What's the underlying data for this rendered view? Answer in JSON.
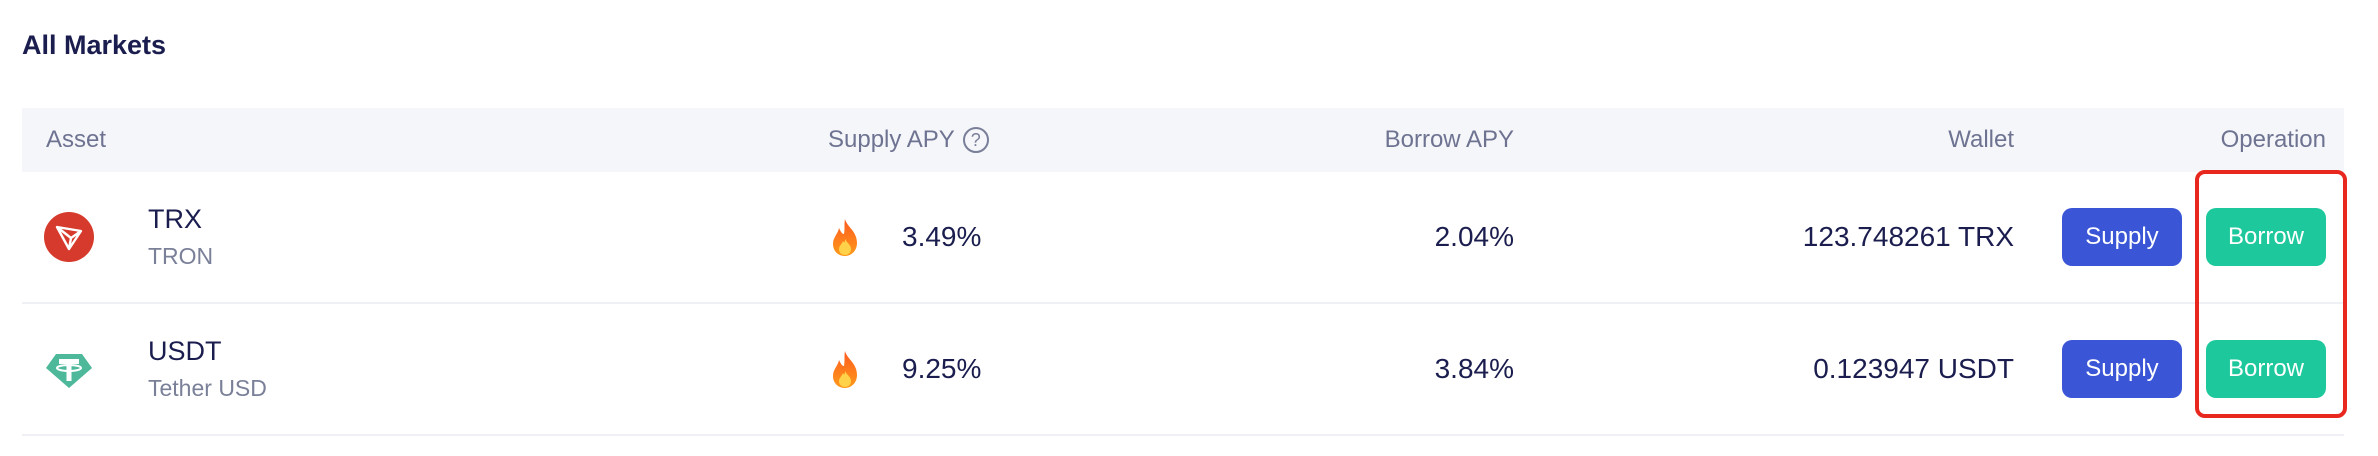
{
  "page": {
    "title": "All Markets"
  },
  "table": {
    "headers": {
      "asset": "Asset",
      "supply_apy": "Supply APY",
      "supply_apy_help": "?",
      "borrow_apy": "Borrow APY",
      "wallet": "Wallet",
      "operation": "Operation"
    },
    "rows": [
      {
        "symbol": "TRX",
        "name": "TRON",
        "icon": "tron-icon",
        "supply_apy": "3.49%",
        "borrow_apy": "2.04%",
        "wallet": "123.748261 TRX",
        "supply_label": "Supply",
        "borrow_label": "Borrow"
      },
      {
        "symbol": "USDT",
        "name": "Tether USD",
        "icon": "tether-icon",
        "supply_apy": "9.25%",
        "borrow_apy": "3.84%",
        "wallet": "0.123947 USDT",
        "supply_label": "Supply",
        "borrow_label": "Borrow"
      }
    ]
  },
  "colors": {
    "supply_button": "#3a55d6",
    "borrow_button": "#1dc89c",
    "highlight": "#e8281e",
    "tron": "#d63a2c",
    "tether": "#4db89a"
  }
}
